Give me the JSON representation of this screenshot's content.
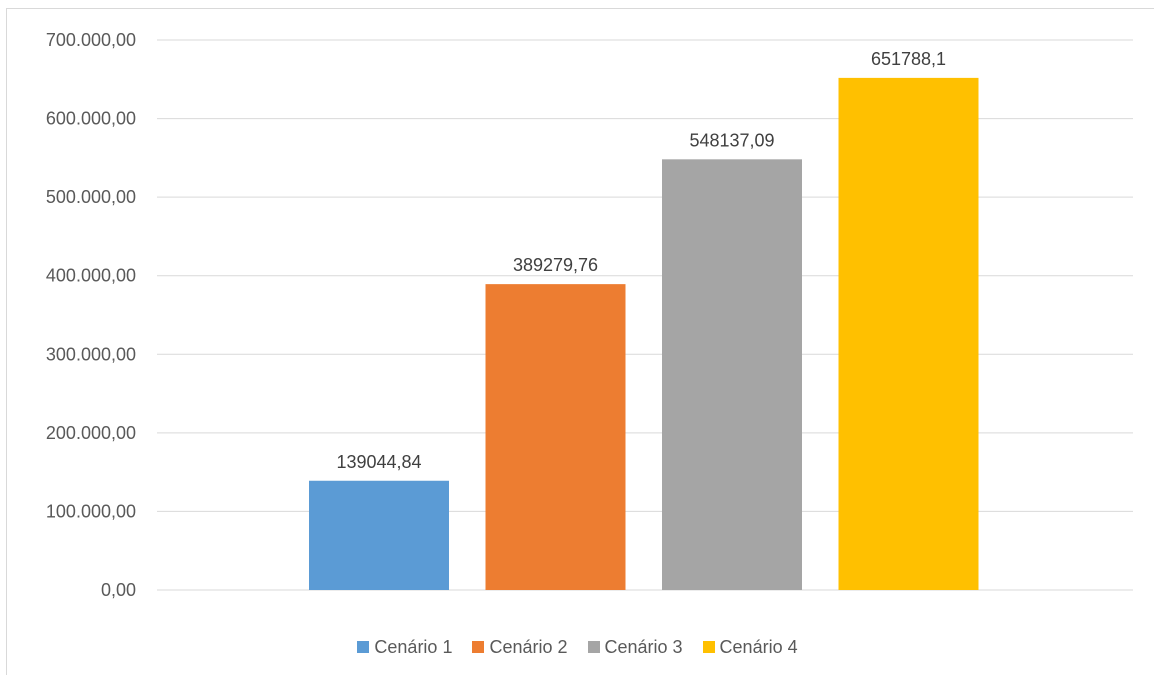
{
  "chart_data": {
    "type": "bar",
    "categories": [
      "Cenário 1",
      "Cenário 2",
      "Cenário 3",
      "Cenário 4"
    ],
    "values": [
      139044.84,
      389279.76,
      548137.09,
      651788.1
    ],
    "data_labels": [
      "139044,84",
      "389279,76",
      "548137,09",
      "651788,1"
    ],
    "colors": [
      "#5b9bd5",
      "#ed7d31",
      "#a5a5a5",
      "#ffc000"
    ],
    "ylim": [
      0,
      700000
    ],
    "yticks": [
      0,
      100000,
      200000,
      300000,
      400000,
      500000,
      600000,
      700000
    ],
    "ytick_labels": [
      "0,00",
      "100.000,00",
      "200.000,00",
      "300.000,00",
      "400.000,00",
      "500.000,00",
      "600.000,00",
      "700.000,00"
    ],
    "grid": true,
    "legend_position": "bottom",
    "title": "",
    "xlabel": "",
    "ylabel": ""
  }
}
